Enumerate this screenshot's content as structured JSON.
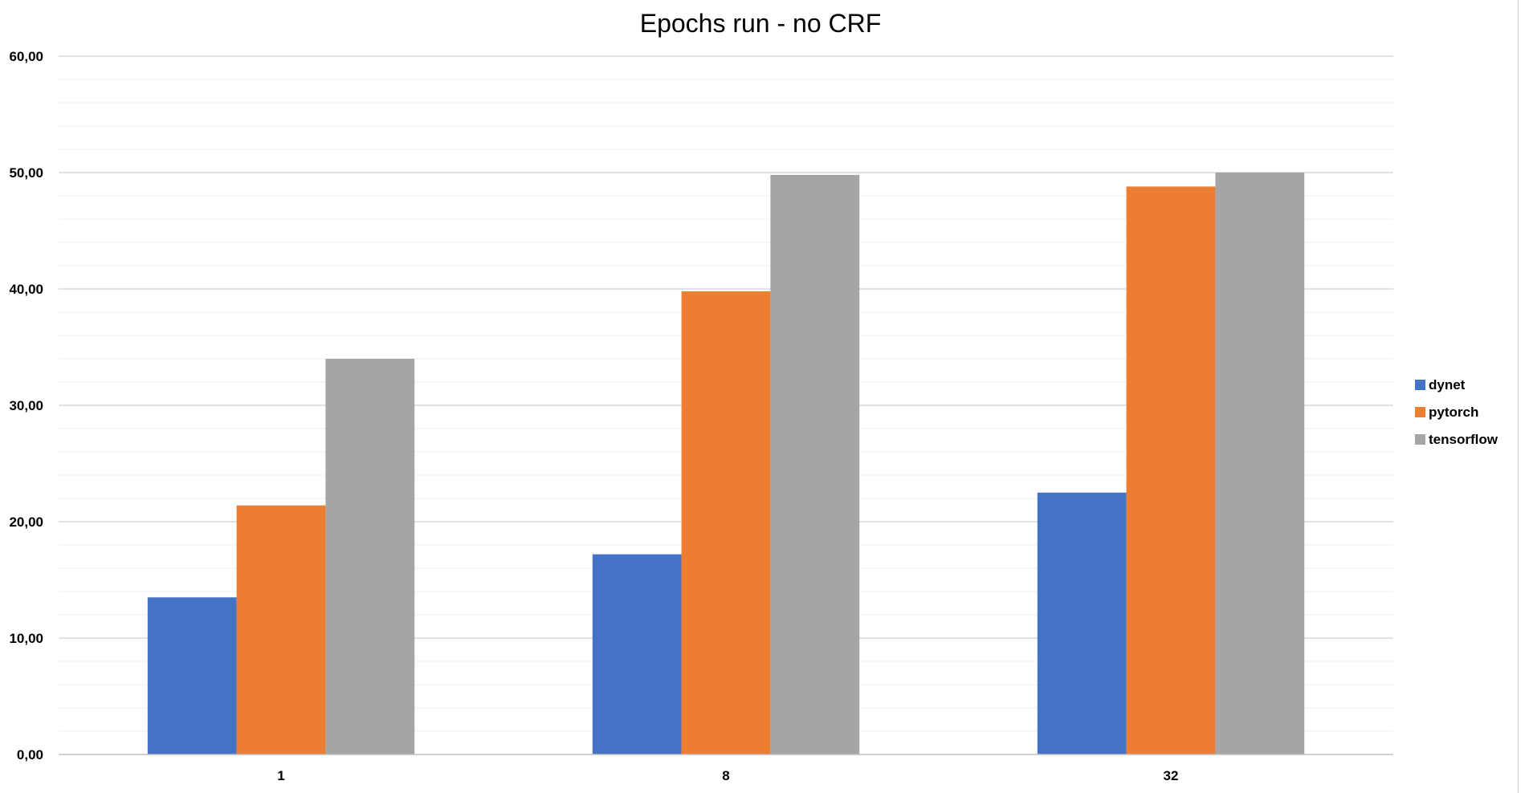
{
  "chart_data": {
    "type": "bar",
    "title": "Epochs run - no CRF",
    "xlabel": "",
    "ylabel": "",
    "categories": [
      "1",
      "8",
      "32"
    ],
    "series": [
      {
        "name": "dynet",
        "values": [
          13.5,
          17.2,
          22.5
        ],
        "color": "#4472C4"
      },
      {
        "name": "pytorch",
        "values": [
          21.4,
          39.8,
          48.8
        ],
        "color": "#ED7D31"
      },
      {
        "name": "tensorflow",
        "values": [
          34.0,
          49.8,
          50.0
        ],
        "color": "#A5A5A5"
      }
    ],
    "ylim": [
      0,
      60
    ],
    "yticks": [
      0,
      10,
      20,
      30,
      40,
      50,
      60
    ],
    "ytick_labels": [
      "0,00",
      "10,00",
      "20,00",
      "30,00",
      "40,00",
      "50,00",
      "60,00"
    ],
    "grid": true,
    "legend_position": "right"
  }
}
